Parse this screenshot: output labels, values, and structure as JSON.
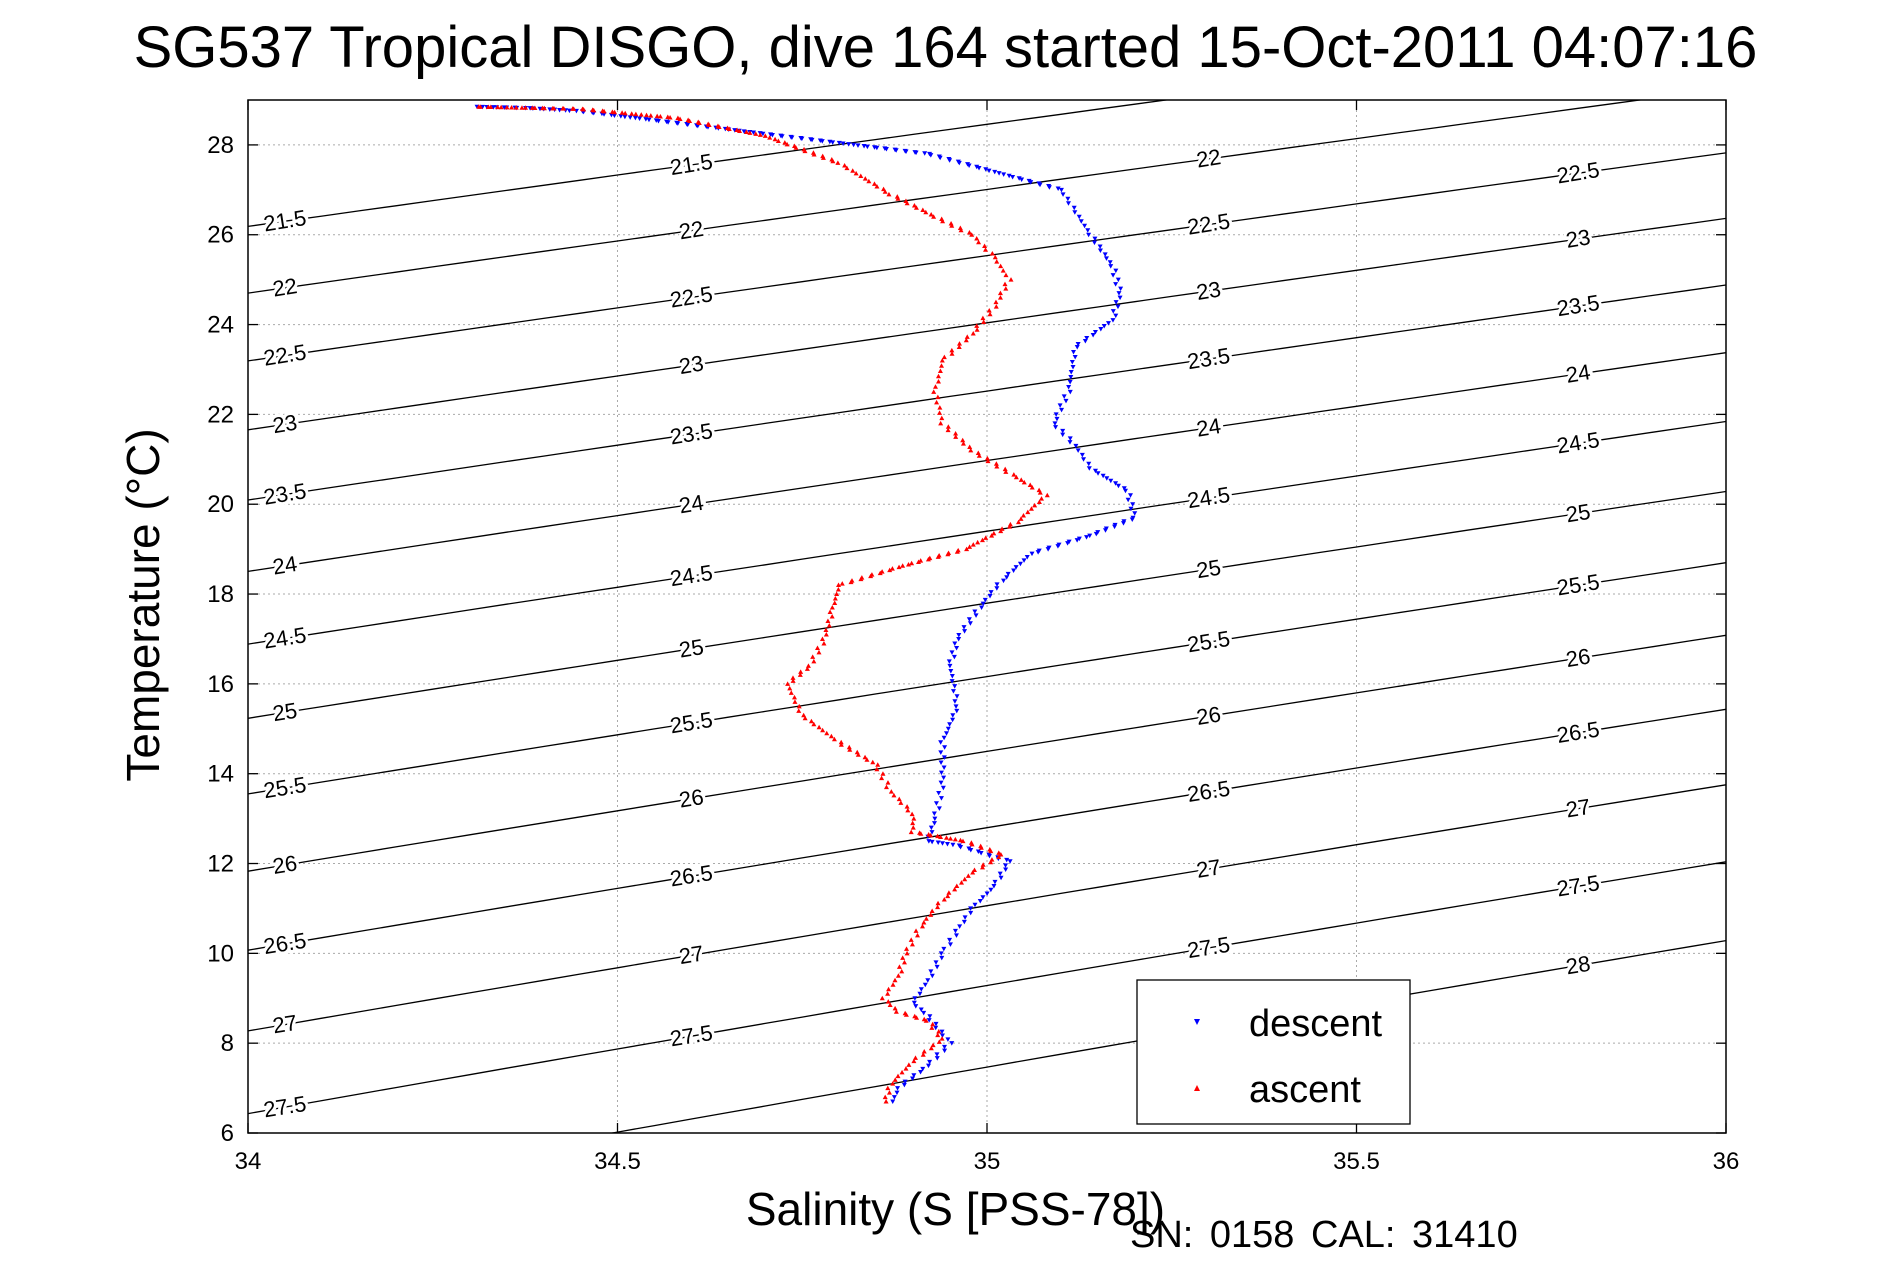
{
  "title": "SG537 Tropical DISGO, dive 164 started 15-Oct-2011 04:07:16",
  "footer": "SN: 0158  CAL: 31410",
  "chart_data": {
    "type": "scatter",
    "xlabel": "Salinity (S [PSS-78])",
    "ylabel": "Temperature (°C)",
    "xlim": [
      34,
      36
    ],
    "ylim": [
      6,
      29
    ],
    "xticks": [
      "34",
      "34.5",
      "35",
      "35.5",
      "36"
    ],
    "yticks": [
      "6",
      "8",
      "10",
      "12",
      "14",
      "16",
      "18",
      "20",
      "22",
      "24",
      "26",
      "28"
    ],
    "grid": true,
    "legend_placement": "bottom-right",
    "density_contours": [
      21.5,
      22,
      22.5,
      23,
      23.5,
      24,
      24.5,
      25,
      25.5,
      26,
      26.5,
      27,
      27.5,
      28
    ],
    "series": [
      {
        "name": "descent",
        "color": "#0000ff",
        "marker": "triangle-down",
        "points": [
          [
            34.31,
            28.85
          ],
          [
            34.38,
            28.82
          ],
          [
            34.45,
            28.75
          ],
          [
            34.92,
            27.8
          ],
          [
            35.1,
            27.0
          ],
          [
            35.12,
            26.5
          ],
          [
            35.14,
            26.0
          ],
          [
            35.17,
            25.3
          ],
          [
            35.18,
            24.7
          ],
          [
            35.17,
            24.1
          ],
          [
            35.12,
            23.5
          ],
          [
            35.11,
            22.5
          ],
          [
            35.09,
            21.8
          ],
          [
            35.12,
            21.3
          ],
          [
            35.14,
            20.8
          ],
          [
            35.19,
            20.3
          ],
          [
            35.2,
            19.7
          ],
          [
            35.14,
            19.3
          ],
          [
            35.06,
            18.9
          ],
          [
            35.02,
            18.3
          ],
          [
            34.99,
            17.7
          ],
          [
            34.96,
            17.0
          ],
          [
            34.95,
            16.4
          ],
          [
            34.96,
            15.5
          ],
          [
            34.94,
            14.7
          ],
          [
            34.94,
            13.8
          ],
          [
            34.93,
            13.0
          ],
          [
            34.92,
            12.5
          ],
          [
            34.96,
            12.4
          ],
          [
            35.0,
            12.2
          ],
          [
            35.03,
            12.05
          ],
          [
            35.01,
            11.5
          ],
          [
            34.98,
            11.0
          ],
          [
            34.96,
            10.5
          ],
          [
            34.94,
            10.0
          ],
          [
            34.92,
            9.4
          ],
          [
            34.9,
            8.9
          ],
          [
            34.92,
            8.6
          ],
          [
            34.95,
            8.0
          ],
          [
            34.92,
            7.5
          ],
          [
            34.88,
            7.0
          ],
          [
            34.87,
            6.6
          ]
        ]
      },
      {
        "name": "ascent",
        "color": "#ff0000",
        "marker": "triangle-up",
        "points": [
          [
            34.31,
            28.85
          ],
          [
            34.45,
            28.8
          ],
          [
            34.58,
            28.6
          ],
          [
            34.7,
            28.2
          ],
          [
            34.8,
            27.6
          ],
          [
            34.87,
            26.9
          ],
          [
            34.93,
            26.4
          ],
          [
            34.98,
            26.0
          ],
          [
            35.01,
            25.5
          ],
          [
            35.03,
            25.0
          ],
          [
            35.01,
            24.4
          ],
          [
            34.98,
            23.8
          ],
          [
            34.94,
            23.2
          ],
          [
            34.93,
            22.5
          ],
          [
            34.94,
            21.8
          ],
          [
            34.98,
            21.2
          ],
          [
            35.04,
            20.6
          ],
          [
            35.08,
            20.2
          ],
          [
            35.04,
            19.6
          ],
          [
            34.97,
            19.0
          ],
          [
            34.88,
            18.6
          ],
          [
            34.8,
            18.2
          ],
          [
            34.79,
            17.6
          ],
          [
            34.78,
            17.0
          ],
          [
            34.76,
            16.4
          ],
          [
            34.73,
            16.0
          ],
          [
            34.75,
            15.3
          ],
          [
            34.8,
            14.7
          ],
          [
            34.85,
            14.2
          ],
          [
            34.87,
            13.6
          ],
          [
            34.9,
            13.1
          ],
          [
            34.9,
            12.7
          ],
          [
            34.97,
            12.5
          ],
          [
            35.02,
            12.2
          ],
          [
            34.98,
            11.8
          ],
          [
            34.94,
            11.2
          ],
          [
            34.91,
            10.6
          ],
          [
            34.89,
            10.0
          ],
          [
            34.88,
            9.5
          ],
          [
            34.86,
            9.0
          ],
          [
            34.88,
            8.7
          ],
          [
            34.92,
            8.5
          ],
          [
            34.94,
            8.1
          ],
          [
            34.9,
            7.6
          ],
          [
            34.87,
            7.1
          ],
          [
            34.86,
            6.6
          ]
        ]
      }
    ]
  }
}
